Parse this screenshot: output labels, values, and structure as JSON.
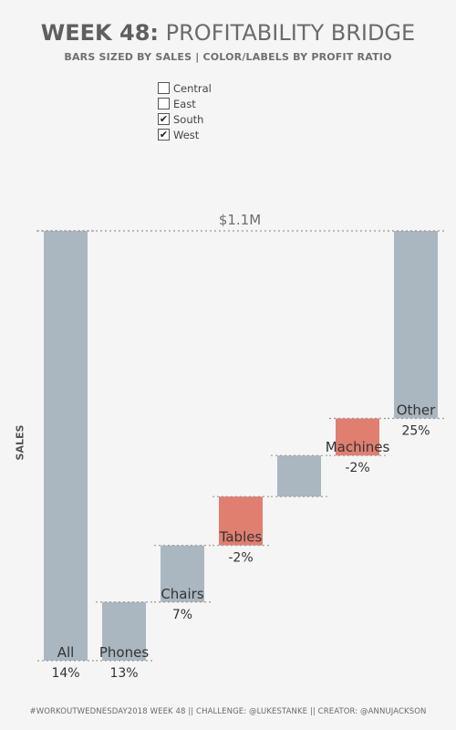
{
  "header": {
    "title_bold": "WEEK 48:",
    "title_rest": "PROFITABILITY BRIDGE",
    "subtitle": "BARS SIZED BY SALES | COLOR/LABELS BY PROFIT RATIO"
  },
  "filter": {
    "options": [
      {
        "label": "Central",
        "checked": false
      },
      {
        "label": "East",
        "checked": false
      },
      {
        "label": "South",
        "checked": true
      },
      {
        "label": "West",
        "checked": true
      }
    ]
  },
  "colors": {
    "positive": "#aab7c0",
    "negative": "#e07f70",
    "background": "#f5f5f5",
    "reference_line": "#999999"
  },
  "chart_data": {
    "type": "bar",
    "subtype": "waterfall",
    "ylabel": "SALES",
    "total_label": "$1.1M",
    "total_value": 1.1,
    "unit": "$M",
    "categories": [
      "All",
      "Phones",
      "Chairs",
      "Tables",
      "",
      "Machines",
      "Other"
    ],
    "bars": [
      {
        "name": "All",
        "start": 0,
        "end": 1.1,
        "profit_ratio": "14%",
        "sign": "positive"
      },
      {
        "name": "Phones",
        "start": 0,
        "end": 0.15,
        "profit_ratio": "13%",
        "sign": "positive"
      },
      {
        "name": "Chairs",
        "start": 0.15,
        "end": 0.295,
        "profit_ratio": "7%",
        "sign": "positive"
      },
      {
        "name": "Tables",
        "start": 0.295,
        "end": 0.42,
        "profit_ratio": "-2%",
        "sign": "negative"
      },
      {
        "name": "",
        "start": 0.42,
        "end": 0.525,
        "profit_ratio": "",
        "sign": "positive"
      },
      {
        "name": "Machines",
        "start": 0.525,
        "end": 0.62,
        "profit_ratio": "-2%",
        "sign": "negative"
      },
      {
        "name": "Other",
        "start": 0.62,
        "end": 1.1,
        "profit_ratio": "25%",
        "sign": "positive"
      }
    ],
    "grid": false
  },
  "footer": {
    "text": "#WORKOUTWEDNESDAY2018 WEEK 48 || CHALLENGE: @LUKESTANKE  || CREATOR: @ANNUJACKSON"
  }
}
